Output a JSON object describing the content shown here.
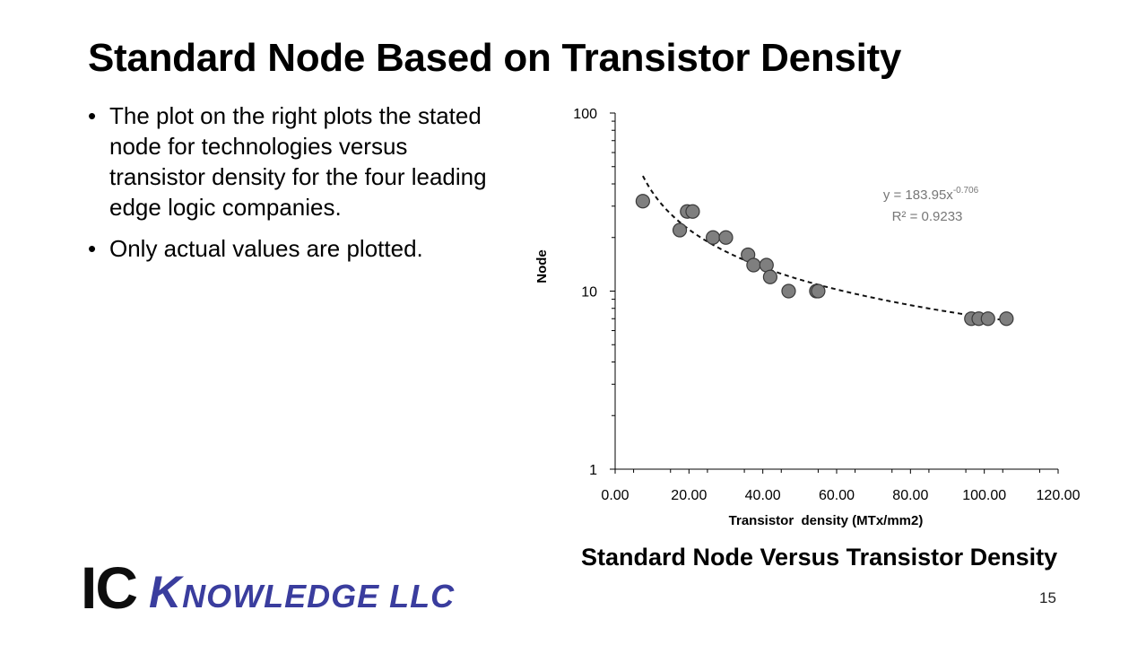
{
  "slide": {
    "title": "Standard Node Based on Transistor Density",
    "bullets": [
      "The plot on the right plots the stated node for technologies versus transistor density for the four leading edge logic companies.",
      "Only actual values are plotted."
    ],
    "bullet_symbol": "•",
    "caption": "Standard Node Versus Transistor Density",
    "page_number": "15"
  },
  "logo": {
    "ic": "IC",
    "knowledge_initial": "K",
    "knowledge_rest": "NOWLEDGE LLC",
    "color": "#3a3d9e"
  },
  "chart_data": {
    "type": "scatter",
    "xlabel": "Transistor  density (MTx/mm2)",
    "ylabel": "Node",
    "xlim": [
      0,
      120
    ],
    "ylim": [
      1,
      100
    ],
    "y_scale": "log",
    "x_ticks": [
      "0.00",
      "20.00",
      "40.00",
      "60.00",
      "80.00",
      "100.00",
      "120.00"
    ],
    "y_ticks": [
      "1",
      "10",
      "100"
    ],
    "grid": false,
    "marker_color": "#7f7f7f",
    "points": [
      {
        "x": 7.5,
        "y": 32
      },
      {
        "x": 17.5,
        "y": 22
      },
      {
        "x": 19.5,
        "y": 28
      },
      {
        "x": 21.0,
        "y": 28
      },
      {
        "x": 26.5,
        "y": 20
      },
      {
        "x": 30.0,
        "y": 20
      },
      {
        "x": 36.0,
        "y": 16
      },
      {
        "x": 37.5,
        "y": 14
      },
      {
        "x": 41.0,
        "y": 14
      },
      {
        "x": 42.0,
        "y": 12
      },
      {
        "x": 47.0,
        "y": 10
      },
      {
        "x": 54.5,
        "y": 10
      },
      {
        "x": 55.0,
        "y": 10
      },
      {
        "x": 96.5,
        "y": 7
      },
      {
        "x": 98.5,
        "y": 7
      },
      {
        "x": 101.0,
        "y": 7
      },
      {
        "x": 106.0,
        "y": 7
      }
    ],
    "trendline": {
      "type": "power",
      "a": 183.95,
      "b": -0.706,
      "equation_prefix": "y = 183.95x",
      "equation_exponent": "-0.706",
      "r_squared_label": "R² = 0.9233"
    }
  }
}
